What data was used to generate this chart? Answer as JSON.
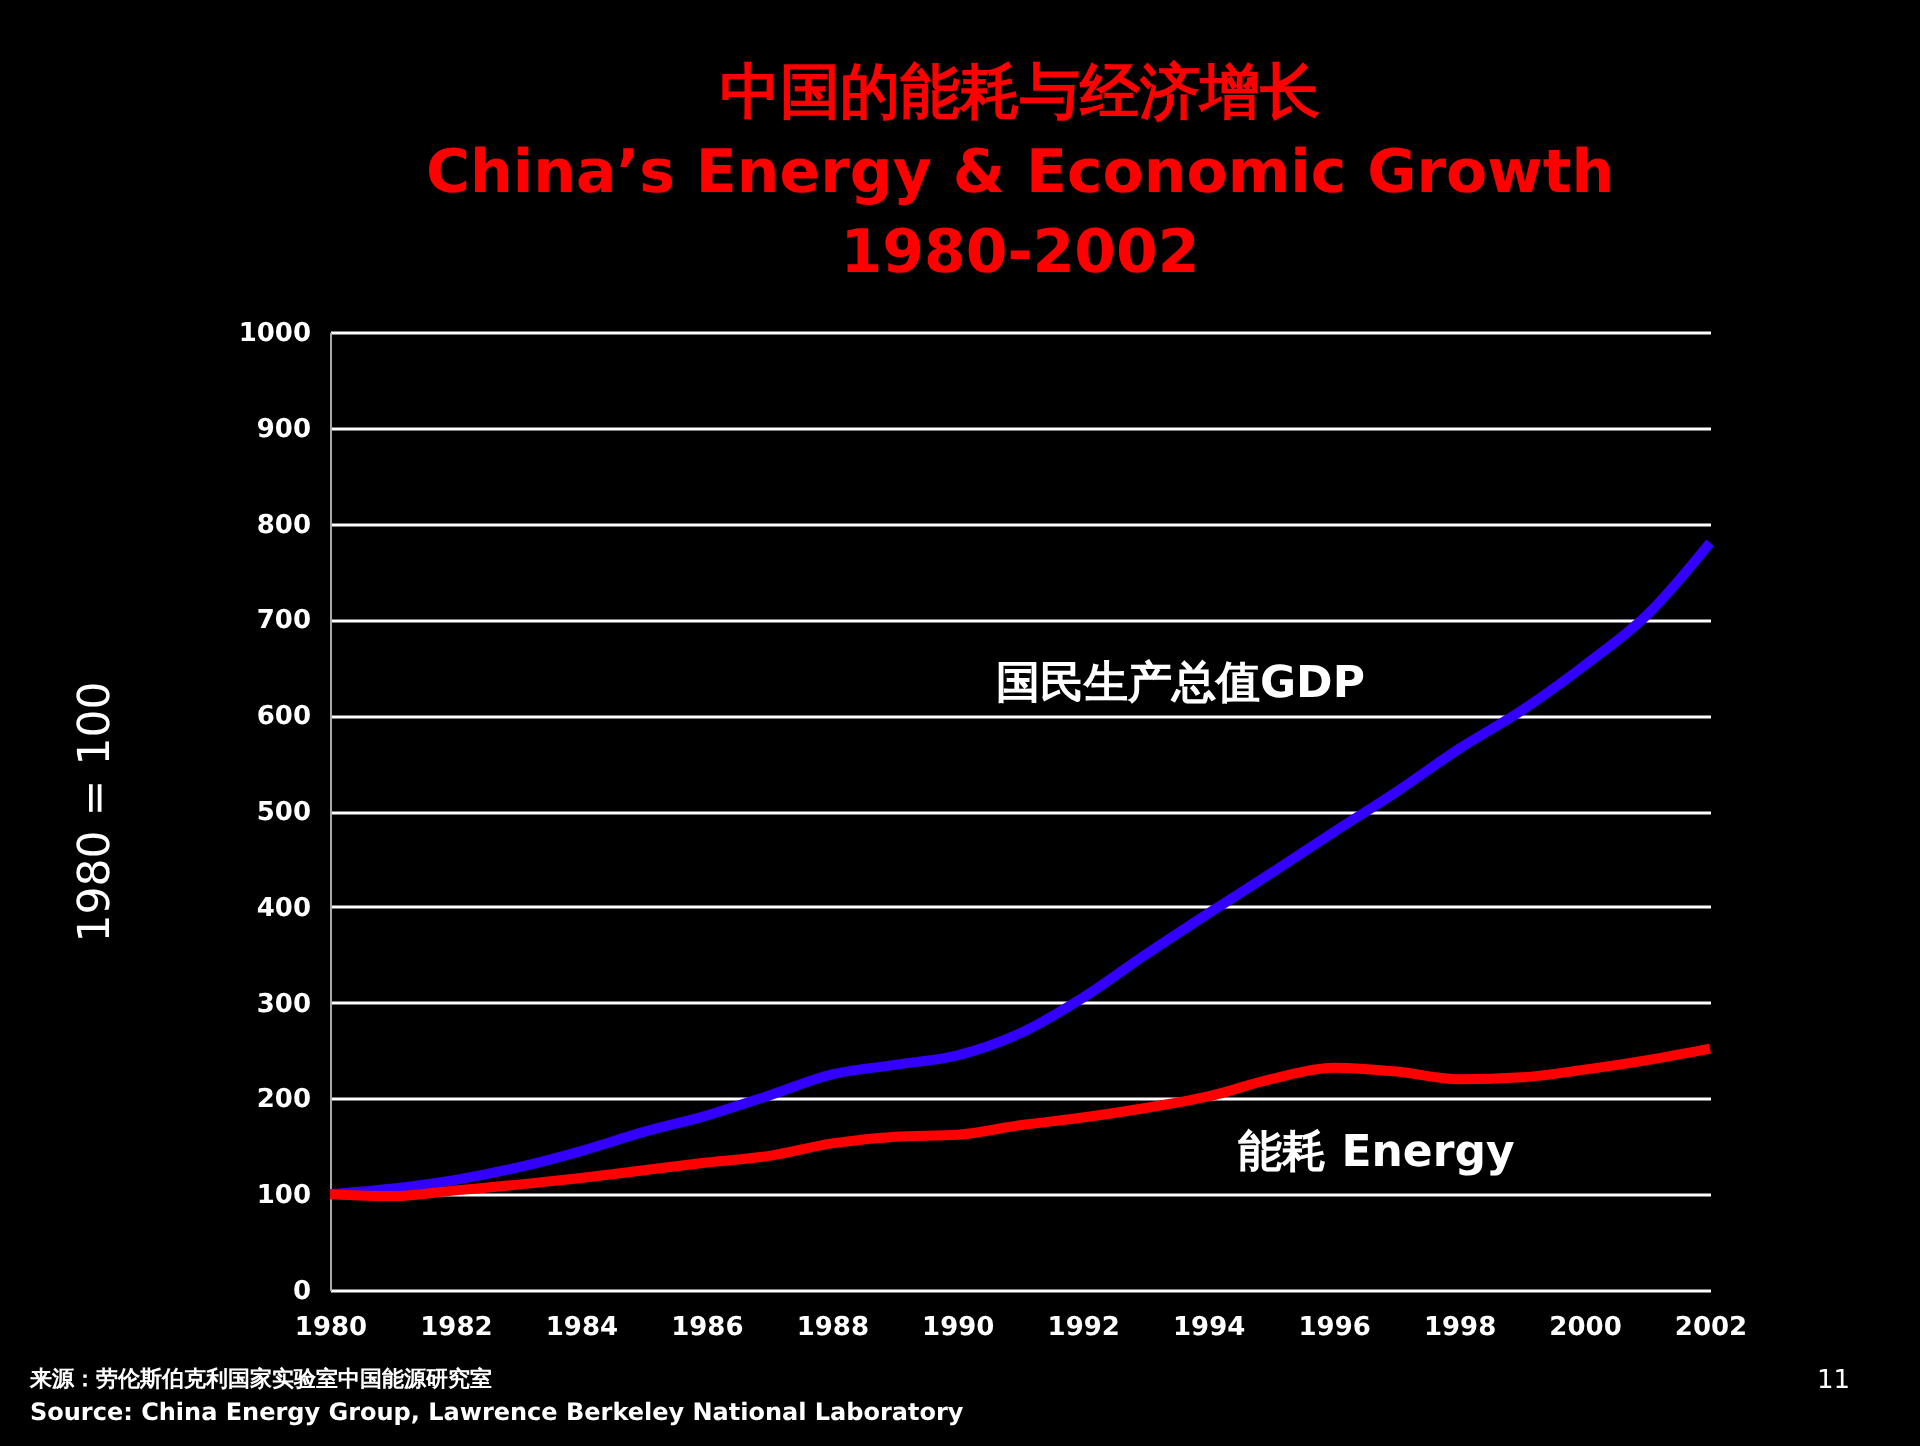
{
  "chart_data": {
    "type": "line",
    "title": "中国的能耗与经济增长\nChina’s Energy & Economic Growth\n1980-2002",
    "ylabel": "1980 = 100",
    "x": [
      1980,
      1981,
      1982,
      1983,
      1984,
      1985,
      1986,
      1987,
      1988,
      1989,
      1990,
      1991,
      1992,
      1993,
      1994,
      1995,
      1996,
      1997,
      1998,
      1999,
      2000,
      2001,
      2002
    ],
    "xlim": [
      1980,
      2002
    ],
    "xticks": [
      1980,
      1982,
      1984,
      1986,
      1988,
      1990,
      1992,
      1994,
      1996,
      1998,
      2000,
      2002
    ],
    "ylim": [
      0,
      1000
    ],
    "yticks": [
      0,
      100,
      200,
      300,
      400,
      500,
      600,
      700,
      800,
      900,
      1000
    ],
    "grid": "y",
    "legend": false,
    "marker": "none",
    "line_style": "solid",
    "series": [
      {
        "name": "国民生产总值GDP",
        "color": "#3300ff",
        "values": [
          100,
          106,
          115,
          128,
          145,
          165,
          182,
          203,
          225,
          235,
          245,
          268,
          305,
          350,
          393,
          435,
          478,
          520,
          565,
          605,
          652,
          705,
          780
        ]
      },
      {
        "name": "能耗 Energy",
        "color": "#ff0000",
        "values": [
          100,
          98,
          104,
          110,
          117,
          125,
          133,
          140,
          153,
          160,
          162,
          172,
          180,
          190,
          202,
          220,
          232,
          228,
          220,
          222,
          230,
          240,
          252
        ]
      }
    ],
    "annotations": [
      "来源：劳伦斯伯克利国家实验室中国能源研究室",
      "Source:  China Energy Group, Lawrence Berkeley National Laboratory",
      "11"
    ]
  }
}
